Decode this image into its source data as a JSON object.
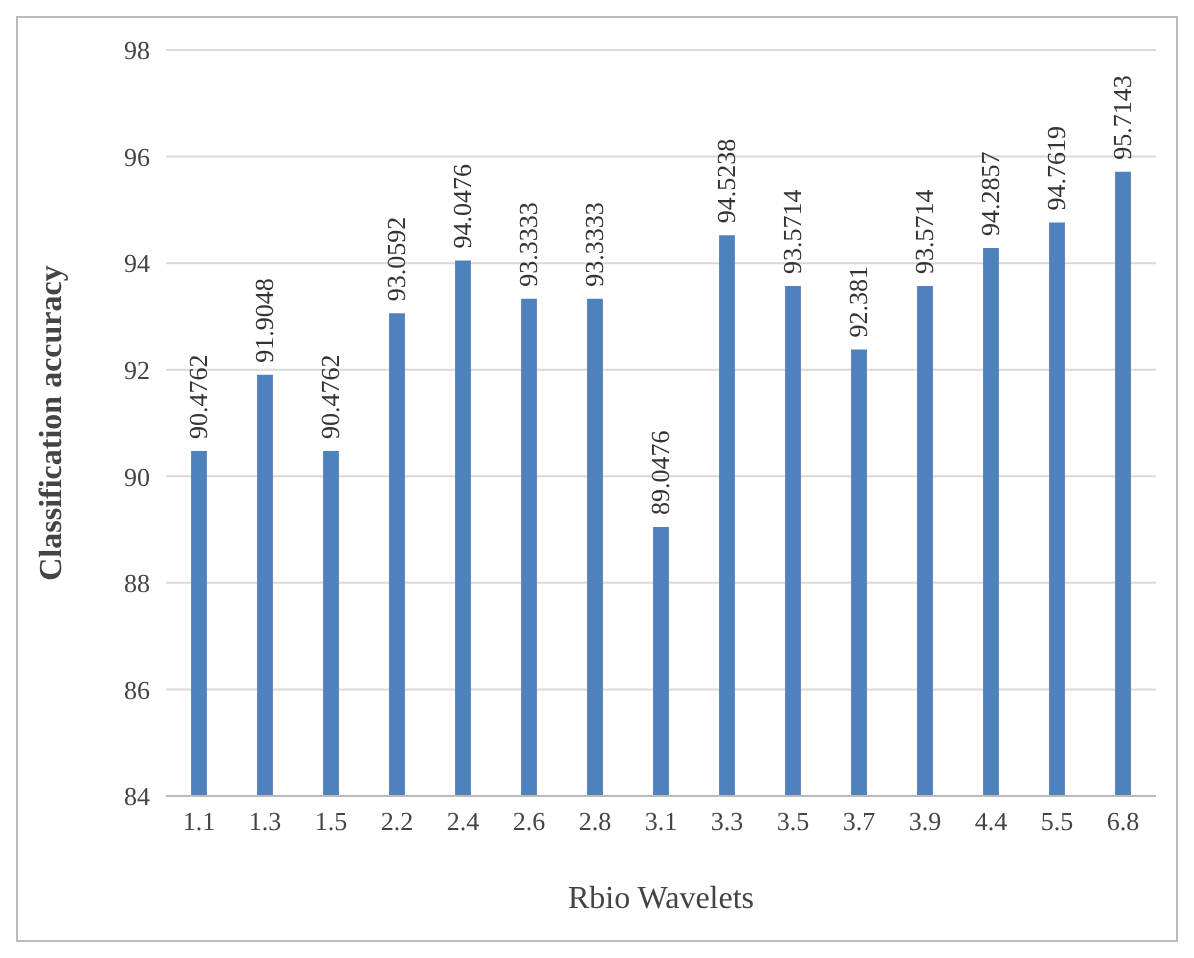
{
  "chart_data": {
    "type": "bar",
    "xlabel": "Rbio Wavelets",
    "ylabel": "Classification accuracy",
    "categories": [
      "1.1",
      "1.3",
      "1.5",
      "2.2",
      "2.4",
      "2.6",
      "2.8",
      "3.1",
      "3.3",
      "3.5",
      "3.7",
      "3.9",
      "4.4",
      "5.5",
      "6.8"
    ],
    "values": [
      90.4762,
      91.9048,
      90.4762,
      93.0592,
      94.0476,
      93.3333,
      93.3333,
      89.0476,
      94.5238,
      93.5714,
      92.381,
      93.5714,
      94.2857,
      94.7619,
      95.7143
    ],
    "color": "#4f81bd",
    "ylim": [
      84,
      98
    ],
    "yticks": [
      84,
      86,
      88,
      90,
      92,
      94,
      96,
      98
    ],
    "grid": "y",
    "data_labels": true,
    "legend": false
  }
}
